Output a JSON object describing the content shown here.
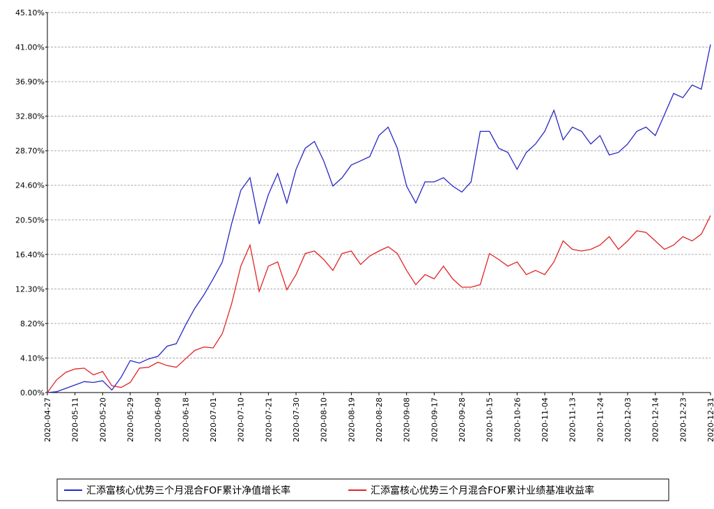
{
  "chart_data": {
    "type": "line",
    "categories": [
      "2020-04-27",
      null,
      null,
      "2020-05-11",
      null,
      null,
      "2020-05-20",
      null,
      null,
      "2020-05-29",
      null,
      null,
      "2020-06-09",
      null,
      null,
      "2020-06-18",
      null,
      null,
      "2020-07-01",
      null,
      null,
      "2020-07-10",
      null,
      null,
      "2020-07-21",
      null,
      null,
      "2020-07-30",
      null,
      null,
      "2020-08-10",
      null,
      null,
      "2020-08-19",
      null,
      null,
      "2020-08-28",
      null,
      null,
      "2020-09-08",
      null,
      null,
      "2020-09-17",
      null,
      null,
      "2020-09-28",
      null,
      null,
      "2020-10-15",
      null,
      null,
      "2020-10-26",
      null,
      null,
      "2020-11-04",
      null,
      null,
      "2020-11-13",
      null,
      null,
      "2020-11-24",
      null,
      null,
      "2020-12-03",
      null,
      null,
      "2020-12-14",
      null,
      null,
      "2020-12-23",
      null,
      null,
      "2020-12-31"
    ],
    "series": [
      {
        "name": "汇添富核心优势三个月混合FOF累计净值增长率",
        "color": "#2626c4",
        "values": [
          0.0,
          0.1,
          0.5,
          0.9,
          1.3,
          1.2,
          1.4,
          0.3,
          1.8,
          3.8,
          3.5,
          4.0,
          4.3,
          5.5,
          5.8,
          8.0,
          10.0,
          11.6,
          13.5,
          15.5,
          20.0,
          24.0,
          25.5,
          20.0,
          23.5,
          26.0,
          22.5,
          26.5,
          29.0,
          29.8,
          27.5,
          24.5,
          25.5,
          27.0,
          27.5,
          28.0,
          30.5,
          31.5,
          29.0,
          24.5,
          22.5,
          25.0,
          25.0,
          25.5,
          24.5,
          23.8,
          25.0,
          31.0,
          31.0,
          29.0,
          28.5,
          26.5,
          28.5,
          29.5,
          31.0,
          33.5,
          30.0,
          31.5,
          31.0,
          29.5,
          30.5,
          28.2,
          28.5,
          29.5,
          31.0,
          31.5,
          30.5,
          33.0,
          35.5,
          35.0,
          36.5,
          36.0,
          41.3
        ]
      },
      {
        "name": "汇添富核心优势三个月混合FOF累计业绩基准收益率",
        "color": "#e02424",
        "values": [
          0.0,
          1.5,
          2.4,
          2.8,
          2.9,
          2.1,
          2.5,
          0.8,
          0.6,
          1.2,
          2.9,
          3.0,
          3.6,
          3.2,
          3.0,
          4.0,
          5.0,
          5.4,
          5.3,
          7.0,
          10.5,
          15.0,
          17.5,
          12.0,
          15.0,
          15.5,
          12.2,
          14.0,
          16.5,
          16.8,
          15.8,
          14.5,
          16.5,
          16.8,
          15.2,
          16.2,
          16.8,
          17.3,
          16.5,
          14.5,
          12.8,
          14.0,
          13.5,
          15.0,
          13.5,
          12.5,
          12.5,
          12.8,
          16.5,
          15.8,
          15.0,
          15.5,
          14.0,
          14.5,
          14.0,
          15.5,
          18.0,
          17.0,
          16.8,
          17.0,
          17.5,
          18.5,
          17.0,
          18.0,
          19.2,
          19.0,
          18.0,
          17.0,
          17.5,
          18.5,
          18.0,
          18.8,
          21.0
        ]
      }
    ],
    "ylim": [
      0,
      45.1
    ],
    "yticks": [
      {
        "value": 0,
        "label": "0.00%"
      },
      {
        "value": 4.1,
        "label": "4.10%"
      },
      {
        "value": 8.2,
        "label": "8.20%"
      },
      {
        "value": 12.3,
        "label": "12.30%"
      },
      {
        "value": 16.4,
        "label": "16.40%"
      },
      {
        "value": 20.5,
        "label": "20.50%"
      },
      {
        "value": 24.6,
        "label": "24.60%"
      },
      {
        "value": 28.7,
        "label": "28.70%"
      },
      {
        "value": 32.8,
        "label": "32.80%"
      },
      {
        "value": 36.9,
        "label": "36.90%"
      },
      {
        "value": 41,
        "label": "41.00%"
      },
      {
        "value": 45.1,
        "label": "45.10%"
      }
    ],
    "grid": true
  }
}
